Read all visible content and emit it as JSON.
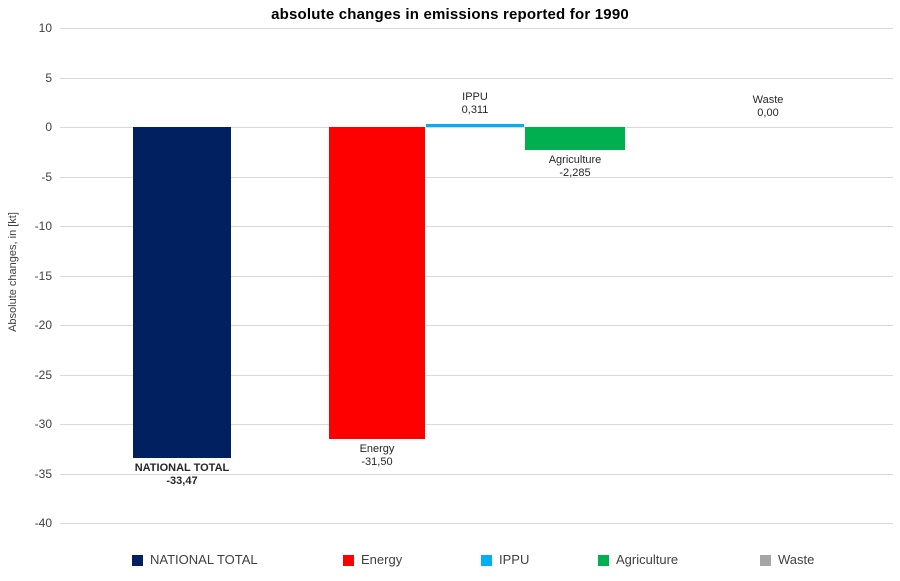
{
  "chart_data": {
    "type": "bar",
    "title": "absolute changes in emissions reported for 1990",
    "ylabel": "Absolute changes, in [kt]",
    "xlabel": "",
    "categories": [
      "NATIONAL TOTAL",
      "Energy",
      "IPPU",
      "Agriculture",
      "Waste"
    ],
    "values": [
      -33.47,
      -31.5,
      0.311,
      -2.285,
      0
    ],
    "value_labels": [
      "-33,47",
      "-31,50",
      "0,311",
      "-2,285",
      "0,00"
    ],
    "colors": [
      "#002060",
      "#ff0000",
      "#00b0f0",
      "#00b050",
      "#a6a6a6"
    ],
    "label_bold": [
      true,
      false,
      false,
      false,
      false
    ],
    "ylim": [
      -40,
      10
    ],
    "yticks": [
      10,
      5,
      0,
      -5,
      -10,
      -15,
      -20,
      -25,
      -30,
      -35,
      -40
    ],
    "grid": true,
    "gridline_color": "#d9d9d9",
    "legend_position": "bottom",
    "legend": [
      {
        "label": "NATIONAL TOTAL",
        "color": "#002060"
      },
      {
        "label": "Energy",
        "color": "#ff0000"
      },
      {
        "label": "IPPU",
        "color": "#00b0f0"
      },
      {
        "label": "Agriculture",
        "color": "#00b050"
      },
      {
        "label": "Waste",
        "color": "#a6a6a6"
      }
    ]
  }
}
